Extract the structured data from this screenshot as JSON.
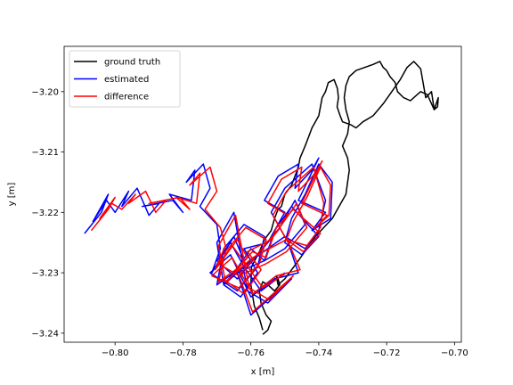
{
  "chart_data": {
    "type": "line",
    "xlabel": "x [m]",
    "ylabel": "y [m]",
    "xlim": [
      -0.815,
      -0.698
    ],
    "ylim": [
      -3.2415,
      -3.1925
    ],
    "xticks": [
      -0.8,
      -0.78,
      -0.76,
      -0.74,
      -0.72,
      -0.7
    ],
    "xtick_labels": [
      "−0.80",
      "−0.78",
      "−0.76",
      "−0.74",
      "−0.72",
      "−0.70"
    ],
    "yticks": [
      -3.2,
      -3.21,
      -3.22,
      -3.23,
      -3.24
    ],
    "ytick_labels": [
      "−3.20",
      "−3.21",
      "−3.22",
      "−3.23",
      "−3.24"
    ],
    "grid": false,
    "legend_position": "upper-left",
    "series": [
      {
        "name": "ground truth",
        "color": "#000000",
        "x": [
          -0.7565,
          -0.7575,
          -0.759,
          -0.76,
          -0.7598,
          -0.7575,
          -0.756,
          -0.754,
          -0.753,
          -0.752,
          -0.751,
          -0.75,
          -0.748,
          -0.747,
          -0.746,
          -0.7455,
          -0.744,
          -0.743,
          -0.742,
          -0.741,
          -0.74,
          -0.7395,
          -0.739,
          -0.738,
          -0.7372,
          -0.7355,
          -0.7345,
          -0.7342,
          -0.7346,
          -0.7337,
          -0.733,
          -0.7305,
          -0.729,
          -0.727,
          -0.724,
          -0.721,
          -0.7185,
          -0.716,
          -0.714,
          -0.712,
          -0.71,
          -0.7085,
          -0.7068,
          -0.706,
          -0.7048,
          -0.705,
          -0.706,
          -0.708,
          -0.71,
          -0.711,
          -0.713,
          -0.715,
          -0.7168,
          -0.7175,
          -0.719,
          -0.72,
          -0.721,
          -0.722,
          -0.724,
          -0.7265,
          -0.729,
          -0.731,
          -0.732,
          -0.7325,
          -0.732,
          -0.731,
          -0.7315,
          -0.733,
          -0.7315,
          -0.731,
          -0.7315,
          -0.732,
          -0.736,
          -0.741,
          -0.746,
          -0.75,
          -0.752,
          -0.7525,
          -0.752,
          -0.7515,
          -0.753,
          -0.755,
          -0.7565,
          -0.7575,
          -0.757,
          -0.7555,
          -0.754,
          -0.755,
          -0.7565
        ],
        "y": [
          -3.2395,
          -3.2375,
          -3.2355,
          -3.232,
          -3.229,
          -3.2265,
          -3.2245,
          -3.223,
          -3.221,
          -3.2195,
          -3.219,
          -3.217,
          -3.2155,
          -3.214,
          -3.2125,
          -3.211,
          -3.209,
          -3.2075,
          -3.206,
          -3.205,
          -3.204,
          -3.2025,
          -3.201,
          -3.2,
          -3.1985,
          -3.198,
          -3.1995,
          -3.201,
          -3.2025,
          -3.204,
          -3.205,
          -3.2055,
          -3.206,
          -3.205,
          -3.204,
          -3.202,
          -3.2,
          -3.198,
          -3.196,
          -3.195,
          -3.1962,
          -3.201,
          -3.2,
          -3.203,
          -3.201,
          -3.2025,
          -3.203,
          -3.2005,
          -3.2,
          -3.2005,
          -3.2015,
          -3.201,
          -3.2,
          -3.1985,
          -3.1975,
          -3.1965,
          -3.196,
          -3.195,
          -3.1955,
          -3.196,
          -3.1965,
          -3.1975,
          -3.199,
          -3.201,
          -3.203,
          -3.205,
          -3.207,
          -3.209,
          -3.211,
          -3.213,
          -3.215,
          -3.217,
          -3.221,
          -3.224,
          -3.228,
          -3.231,
          -3.232,
          -3.2305,
          -3.231,
          -3.232,
          -3.233,
          -3.232,
          -3.2315,
          -3.233,
          -3.235,
          -3.237,
          -3.238,
          -3.2395,
          -3.2402
        ]
      },
      {
        "name": "estimated",
        "color": "#0000ff",
        "x": [
          -0.809,
          -0.804,
          -0.802,
          -0.8065,
          -0.8025,
          -0.8,
          -0.796,
          -0.798,
          -0.7935,
          -0.79,
          -0.787,
          -0.792,
          -0.783,
          -0.78,
          -0.784,
          -0.7775,
          -0.7765,
          -0.779,
          -0.774,
          -0.772,
          -0.775,
          -0.77,
          -0.769,
          -0.7715,
          -0.765,
          -0.762,
          -0.768,
          -0.763,
          -0.758,
          -0.762,
          -0.755,
          -0.75,
          -0.756,
          -0.752,
          -0.746,
          -0.747,
          -0.742,
          -0.74,
          -0.746,
          -0.738,
          -0.742,
          -0.7365,
          -0.736,
          -0.74,
          -0.744,
          -0.748,
          -0.75,
          -0.745,
          -0.74,
          -0.748,
          -0.753,
          -0.756,
          -0.76,
          -0.765,
          -0.77,
          -0.768,
          -0.762,
          -0.756,
          -0.758,
          -0.764,
          -0.772,
          -0.766,
          -0.76,
          -0.753,
          -0.746,
          -0.749,
          -0.754,
          -0.75,
          -0.742,
          -0.738,
          -0.74,
          -0.744,
          -0.75,
          -0.76,
          -0.768,
          -0.77,
          -0.765,
          -0.761,
          -0.755,
          -0.748,
          -0.76,
          -0.764,
          -0.756,
          -0.75,
          -0.744,
          -0.747,
          -0.752,
          -0.758,
          -0.764,
          -0.77,
          -0.766,
          -0.762,
          -0.757,
          -0.75
        ],
        "y": [
          -3.2235,
          -3.22,
          -3.217,
          -3.2215,
          -3.218,
          -3.22,
          -3.2165,
          -3.219,
          -3.216,
          -3.2205,
          -3.2185,
          -3.219,
          -3.218,
          -3.22,
          -3.217,
          -3.218,
          -3.213,
          -3.215,
          -3.212,
          -3.216,
          -3.219,
          -3.222,
          -3.226,
          -3.23,
          -3.224,
          -3.228,
          -3.232,
          -3.234,
          -3.23,
          -3.226,
          -3.225,
          -3.22,
          -3.218,
          -3.214,
          -3.212,
          -3.216,
          -3.213,
          -3.211,
          -3.218,
          -3.22,
          -3.223,
          -3.221,
          -3.215,
          -3.212,
          -3.217,
          -3.221,
          -3.225,
          -3.227,
          -3.224,
          -3.219,
          -3.223,
          -3.228,
          -3.226,
          -3.23,
          -3.232,
          -3.226,
          -3.222,
          -3.224,
          -3.229,
          -3.233,
          -3.23,
          -3.227,
          -3.234,
          -3.231,
          -3.23,
          -3.225,
          -3.22,
          -3.216,
          -3.212,
          -3.218,
          -3.223,
          -3.226,
          -3.224,
          -3.228,
          -3.232,
          -3.225,
          -3.22,
          -3.233,
          -3.235,
          -3.231,
          -3.237,
          -3.23,
          -3.228,
          -3.226,
          -3.222,
          -3.218,
          -3.223,
          -3.227,
          -3.231,
          -3.228,
          -3.225,
          -3.229,
          -3.233,
          -3.23
        ]
      },
      {
        "name": "difference",
        "color": "#ff0000",
        "x": [
          -0.807,
          -0.802,
          -0.8,
          -0.8045,
          -0.801,
          -0.798,
          -0.794,
          -0.796,
          -0.791,
          -0.788,
          -0.785,
          -0.79,
          -0.781,
          -0.778,
          -0.782,
          -0.776,
          -0.775,
          -0.778,
          -0.772,
          -0.77,
          -0.7735,
          -0.769,
          -0.7675,
          -0.7705,
          -0.764,
          -0.761,
          -0.767,
          -0.762,
          -0.757,
          -0.761,
          -0.754,
          -0.749,
          -0.755,
          -0.751,
          -0.745,
          -0.746,
          -0.741,
          -0.739,
          -0.745,
          -0.7375,
          -0.741,
          -0.737,
          -0.7365,
          -0.7395,
          -0.7435,
          -0.7475,
          -0.7495,
          -0.7445,
          -0.7395,
          -0.7475,
          -0.7525,
          -0.7555,
          -0.7595,
          -0.7645,
          -0.7695,
          -0.7675,
          -0.7615,
          -0.7555,
          -0.7575,
          -0.7635,
          -0.7715,
          -0.7655,
          -0.7595,
          -0.7525,
          -0.7455,
          -0.7485,
          -0.7535,
          -0.7495,
          -0.7415,
          -0.7385,
          -0.7395,
          -0.7435,
          -0.7495,
          -0.7595,
          -0.7675,
          -0.7695,
          -0.7645,
          -0.7605,
          -0.7545,
          -0.7475,
          -0.7595,
          -0.7635,
          -0.7555,
          -0.7495,
          -0.7435,
          -0.7465,
          -0.7515,
          -0.7575,
          -0.7635,
          -0.7695,
          -0.7655,
          -0.7615,
          -0.7565,
          -0.7495
        ],
        "y": [
          -3.223,
          -3.2195,
          -3.2175,
          -3.221,
          -3.2185,
          -3.2195,
          -3.217,
          -3.2185,
          -3.2165,
          -3.22,
          -3.218,
          -3.2185,
          -3.2175,
          -3.2195,
          -3.2175,
          -3.2185,
          -3.2135,
          -3.2155,
          -3.2125,
          -3.2165,
          -3.2195,
          -3.2225,
          -3.2255,
          -3.2295,
          -3.2245,
          -3.2275,
          -3.2315,
          -3.2335,
          -3.2295,
          -3.2265,
          -3.2245,
          -3.2205,
          -3.2185,
          -3.2145,
          -3.2125,
          -3.2165,
          -3.2135,
          -3.2115,
          -3.2185,
          -3.2205,
          -3.2225,
          -3.2205,
          -3.2155,
          -3.2125,
          -3.2175,
          -3.2215,
          -3.2245,
          -3.2265,
          -3.2235,
          -3.2195,
          -3.2225,
          -3.2275,
          -3.2265,
          -3.2295,
          -3.2315,
          -3.2265,
          -3.2225,
          -3.2245,
          -3.2285,
          -3.2325,
          -3.2305,
          -3.2275,
          -3.2335,
          -3.2305,
          -3.2295,
          -3.2255,
          -3.2205,
          -3.2165,
          -3.2125,
          -3.2185,
          -3.2225,
          -3.2255,
          -3.2245,
          -3.2275,
          -3.2315,
          -3.2255,
          -3.2205,
          -3.2325,
          -3.2345,
          -3.2305,
          -3.2365,
          -3.2305,
          -3.2285,
          -3.2265,
          -3.2225,
          -3.2185,
          -3.2225,
          -3.2265,
          -3.2305,
          -3.2285,
          -3.2255,
          -3.2285,
          -3.2325,
          -3.23
        ]
      }
    ]
  }
}
